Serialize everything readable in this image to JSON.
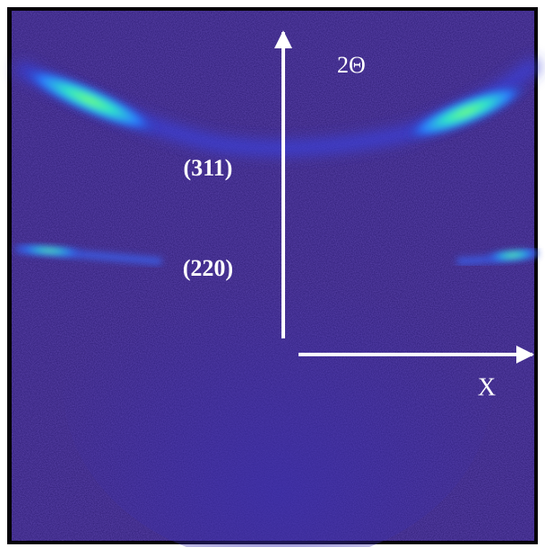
{
  "labels": {
    "two_theta": "2Θ",
    "peak_311": "(311)",
    "peak_220": "(220)",
    "x_axis": "X"
  }
}
